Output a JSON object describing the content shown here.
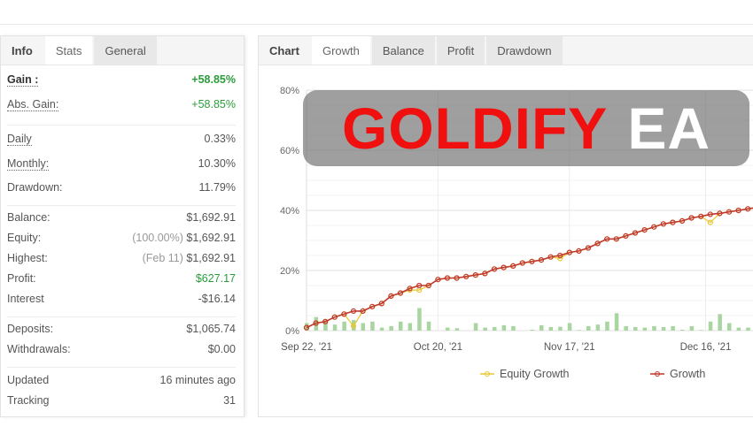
{
  "left_panel": {
    "tabs": [
      {
        "label": "Info"
      },
      {
        "label": "Stats"
      },
      {
        "label": "General"
      }
    ],
    "rows": [
      {
        "label": "Gain :",
        "value": "+58.85%"
      },
      {
        "label": "Abs. Gain:",
        "value": "+58.85%"
      },
      {
        "label": "Daily",
        "value": "0.33%"
      },
      {
        "label": "Monthly:",
        "value": "10.30%"
      },
      {
        "label": "Drawdown:",
        "value": "11.79%"
      },
      {
        "label": "Balance:",
        "value": "$1,692.91"
      },
      {
        "label": "Equity:",
        "prefix": "(100.00%)",
        "value": "$1,692.91"
      },
      {
        "label": "Highest:",
        "prefix": "(Feb 11)",
        "value": "$1,692.91"
      },
      {
        "label": "Profit:",
        "value": "$627.17"
      },
      {
        "label": "Interest",
        "value": "-$16.14"
      },
      {
        "label": "Deposits:",
        "value": "$1,065.74"
      },
      {
        "label": "Withdrawals:",
        "value": "$0.00"
      },
      {
        "label": "Updated",
        "value": "16 minutes ago"
      },
      {
        "label": "Tracking",
        "value": "31"
      }
    ]
  },
  "right_panel": {
    "tabs": [
      {
        "label": "Chart"
      },
      {
        "label": "Growth"
      },
      {
        "label": "Balance"
      },
      {
        "label": "Profit"
      },
      {
        "label": "Drawdown"
      }
    ]
  },
  "overlay": {
    "title_red": "GOLDIFY",
    "title_white": "EA"
  },
  "chart_data": {
    "type": "line",
    "y_ticks": [
      "0%",
      "20%",
      "40%",
      "60%",
      "80%"
    ],
    "ylim": [
      0,
      80
    ],
    "x_ticks": [
      "Sep 22, '21",
      "Oct 20, '21",
      "Nov 17, '21",
      "Dec 16, '21"
    ],
    "x_tick_dates": [
      "2021-09-22",
      "2021-10-20",
      "2021-11-17",
      "2021-12-16"
    ],
    "grid": true,
    "legend_position": "bottom",
    "colors": {
      "equity": "#e8c832",
      "growth": "#c0392b",
      "bars": "#a8d5a0"
    },
    "x": [
      "2021-09-22",
      "2021-09-24",
      "2021-09-26",
      "2021-09-28",
      "2021-09-30",
      "2021-10-02",
      "2021-10-04",
      "2021-10-06",
      "2021-10-08",
      "2021-10-10",
      "2021-10-12",
      "2021-10-14",
      "2021-10-16",
      "2021-10-18",
      "2021-10-20",
      "2021-10-22",
      "2021-10-24",
      "2021-10-26",
      "2021-10-28",
      "2021-10-30",
      "2021-11-01",
      "2021-11-03",
      "2021-11-05",
      "2021-11-07",
      "2021-11-09",
      "2021-11-11",
      "2021-11-13",
      "2021-11-15",
      "2021-11-17",
      "2021-11-19",
      "2021-11-21",
      "2021-11-23",
      "2021-11-25",
      "2021-11-27",
      "2021-11-29",
      "2021-12-01",
      "2021-12-03",
      "2021-12-05",
      "2021-12-07",
      "2021-12-09",
      "2021-12-11",
      "2021-12-13",
      "2021-12-15",
      "2021-12-17",
      "2021-12-19",
      "2021-12-21",
      "2021-12-23",
      "2021-12-25",
      "2021-12-27"
    ],
    "series": [
      {
        "name": "Equity Growth",
        "values": [
          1,
          2.5,
          3,
          4.5,
          5.5,
          1.5,
          6.5,
          8,
          9,
          11.5,
          12.5,
          13.5,
          13.5,
          15,
          17,
          17.5,
          17.5,
          18,
          18.5,
          19,
          20.5,
          21,
          21.5,
          22.5,
          23,
          23.5,
          24.5,
          24,
          26,
          26.5,
          27.5,
          29,
          30.5,
          30.5,
          31.5,
          32.5,
          33.5,
          34.5,
          35.5,
          36,
          36.5,
          37.5,
          38,
          36,
          39,
          39.5,
          40,
          40.5,
          41
        ]
      },
      {
        "name": "Growth",
        "values": [
          1,
          2.5,
          3,
          4.5,
          5.5,
          6.5,
          6.5,
          8,
          9,
          11.5,
          12.5,
          14,
          15,
          15,
          17,
          17.5,
          17.5,
          18,
          18.5,
          19,
          20.5,
          21,
          21.5,
          22.5,
          23,
          23.5,
          24.5,
          25,
          26,
          26.5,
          27.5,
          29,
          30.5,
          30.5,
          31.5,
          32.5,
          33.5,
          34.5,
          35.5,
          36,
          36.5,
          37.5,
          38,
          38.7,
          39,
          39.5,
          40,
          40.5,
          41
        ]
      }
    ],
    "bars": [
      2.5,
      4.5,
      3.5,
      2,
      3,
      3.5,
      2.5,
      3,
      1,
      1.5,
      3,
      2.5,
      7.5,
      3,
      0,
      1,
      0.8,
      0,
      2.5,
      1,
      1.2,
      1.8,
      1.5,
      0,
      0.3,
      1.8,
      1.2,
      1.3,
      2.5,
      0.2,
      1.5,
      2,
      3,
      5.8,
      1.5,
      1.2,
      1,
      1.5,
      1.2,
      1.5,
      0.3,
      1.5,
      0.2,
      3,
      5.5,
      2.5,
      1,
      1,
      1
    ]
  }
}
